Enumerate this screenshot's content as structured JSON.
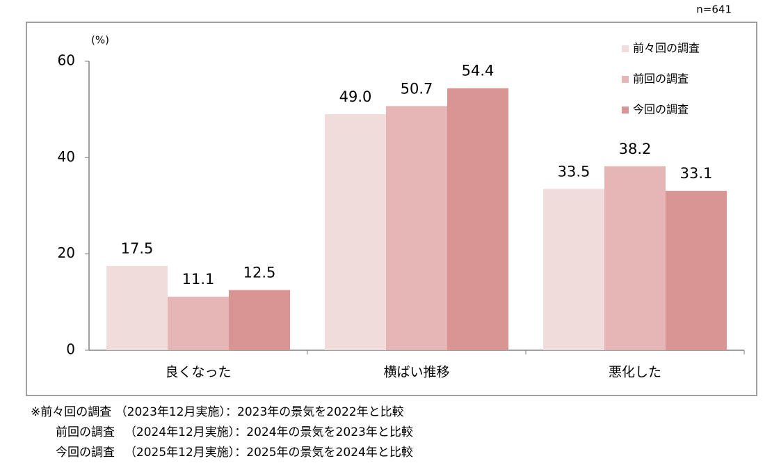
{
  "chart_data": {
    "type": "bar",
    "sample_size": "n=641",
    "y_unit": "(%)",
    "categories": [
      "良くなった",
      "横ばい推移",
      "悪化した"
    ],
    "series": [
      {
        "name": "前々回の調査",
        "color": "#f1dcdc",
        "values": [
          17.5,
          49.0,
          33.5
        ],
        "value_labels": [
          "17.5",
          "49.0",
          "33.5"
        ]
      },
      {
        "name": "前回の調査",
        "color": "#e6b6b6",
        "values": [
          11.1,
          50.7,
          38.2
        ],
        "value_labels": [
          "11.1",
          "50.7",
          "38.2"
        ]
      },
      {
        "name": "今回の調査",
        "color": "#d99594",
        "values": [
          12.5,
          54.4,
          33.1
        ],
        "value_labels": [
          "12.5",
          "54.4",
          "33.1"
        ]
      }
    ],
    "ylim": [
      0,
      60
    ],
    "yticks": [
      0,
      20,
      40,
      60
    ],
    "grid": false,
    "legend": "top-right",
    "notes": [
      "※前々回の調査 （2023年12月実施）：2023年の景気を2022年と比較",
      "前回の調査 　（2024年12月実施）：2024年の景気を2023年と比較",
      "今回の調査 　（2025年12月実施）：2025年の景気を2024年と比較"
    ]
  }
}
